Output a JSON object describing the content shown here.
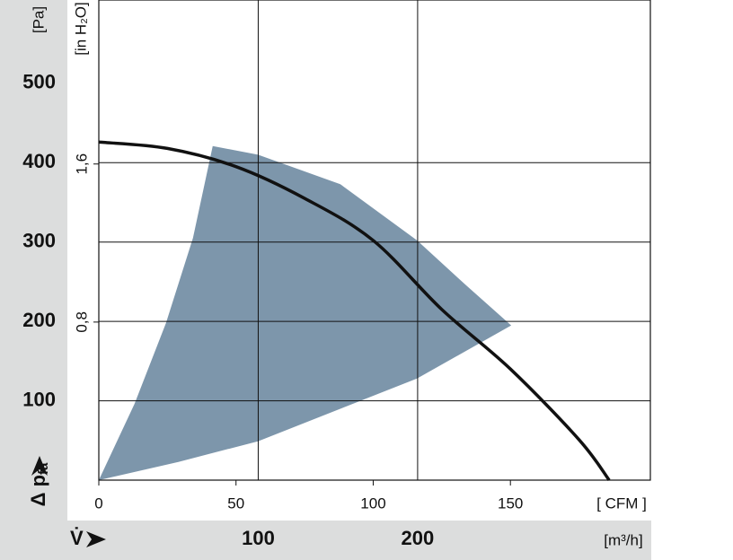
{
  "chart_data": {
    "type": "line",
    "xlabel": "[ CFM ]",
    "xlim": [
      0,
      201
    ],
    "xticks": [
      0,
      50,
      100,
      150
    ],
    "x2label": "[m³/h]",
    "x2symbol": "V̇",
    "x2lim": [
      0,
      346
    ],
    "x2ticks": [
      100,
      200
    ],
    "xgrid": [
      100,
      200
    ],
    "ylabel": "[Pa]",
    "ytitle": [
      "Δ p",
      "fa"
    ],
    "ylim": [
      0,
      605
    ],
    "yticks": [
      100,
      200,
      300,
      400,
      500
    ],
    "ygrid": [
      100,
      200,
      300,
      400
    ],
    "y2label": "[in H₂O]",
    "y2lim": [
      0,
      2.43
    ],
    "y2ticks": [
      {
        "value": 0.8,
        "label": "0,8"
      },
      {
        "value": 1.6,
        "label": "1,6"
      }
    ],
    "series": [
      {
        "kind": "area",
        "color": "#7d96ab",
        "x": [
          0,
          13,
          24.5,
          34.3,
          41.5,
          58,
          88,
          116,
          134,
          150.3,
          116,
          58,
          29,
          0
        ],
        "values": [
          0,
          96,
          198,
          305,
          421,
          410,
          373,
          302,
          245,
          195,
          128,
          49,
          23,
          0
        ]
      },
      {
        "kind": "line",
        "color": "#111111",
        "x": [
          0,
          25,
          50,
          75,
          100,
          125,
          150,
          175,
          186
        ],
        "values": [
          426,
          418,
          395,
          355,
          302,
          215,
          140,
          51,
          0
        ]
      }
    ]
  }
}
